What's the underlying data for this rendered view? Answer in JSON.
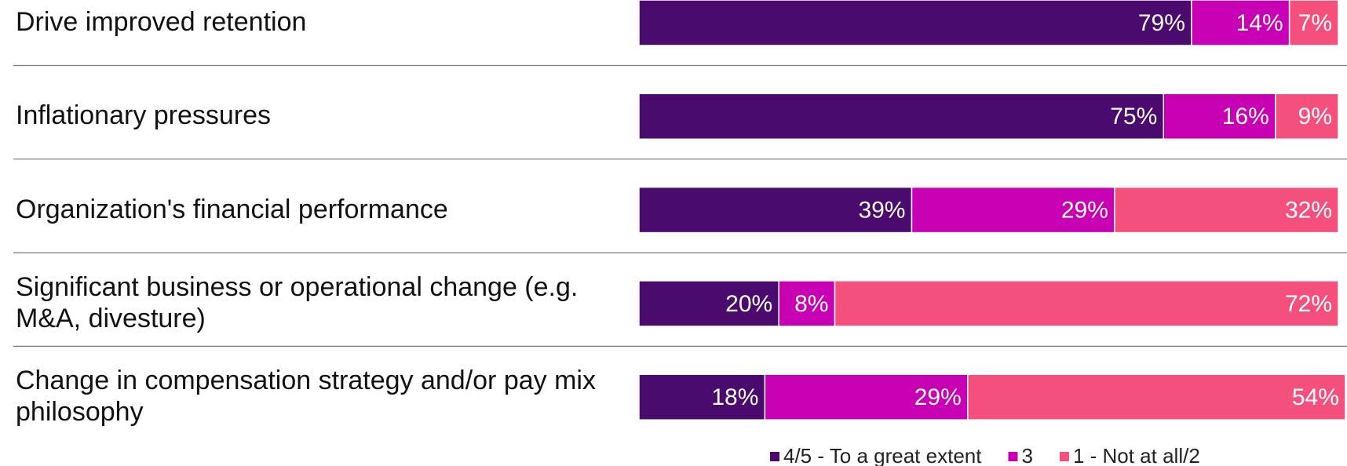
{
  "chart_data": {
    "type": "stacked_barh",
    "categories": [
      "Drive improved retention",
      "Inflationary pressures",
      "Organization's financial performance",
      "Significant business or operational change (e.g. M&A, divesture)",
      "Change in compensation strategy and/or pay mix philosophy"
    ],
    "series": [
      {
        "name": "4/5 - To a great extent",
        "color": "#4b0a6e",
        "values": [
          79,
          75,
          39,
          20,
          18
        ],
        "value_labels": [
          "79%",
          "75%",
          "39%",
          "20%",
          "18%"
        ]
      },
      {
        "name": "3",
        "color": "#c800b4",
        "values": [
          14,
          16,
          29,
          8,
          29
        ],
        "value_labels": [
          "14%",
          "16%",
          "29%",
          "8%",
          "29%"
        ]
      },
      {
        "name": "1 - Not at all/2",
        "color": "#f5507d",
        "values": [
          7,
          9,
          32,
          72,
          54
        ],
        "value_labels": [
          "7%",
          "9%",
          "32%",
          "72%",
          "54%"
        ]
      }
    ],
    "xlim": [
      0,
      100
    ],
    "legend": "bottom"
  }
}
